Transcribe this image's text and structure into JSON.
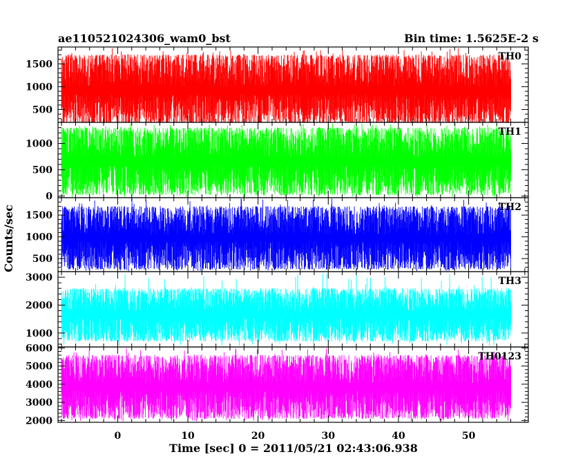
{
  "chart_data": {
    "type": "line",
    "title": "ae110521024306_wam0_bst",
    "bin_time_label": "Bin time: 1.5625E-2 s",
    "xlabel": "Time [sec] 0 = 2011/05/21 02:43:06.938",
    "ylabel": "Counts/sec",
    "xlim": [
      -8.5,
      58.5
    ],
    "xticks": [
      0,
      10,
      20,
      30,
      40,
      50
    ],
    "xtick_labels": [
      "0",
      "10",
      "20",
      "30",
      "40",
      "50"
    ],
    "x_start": -8,
    "x_end": 56,
    "bin_time": 0.015625,
    "grid": false,
    "panels": [
      {
        "name": "TH0",
        "color": "#ff0000",
        "ylim": [
          220,
          1870
        ],
        "yticks": [
          500,
          1000,
          1500
        ],
        "ytick_labels": [
          "500",
          "1000",
          "1500"
        ],
        "typical_min": 150,
        "typical_max": 1700,
        "mean": 850,
        "peak": 1850
      },
      {
        "name": "TH1",
        "color": "#00ff00",
        "ylim": [
          -30,
          1400
        ],
        "yticks": [
          0,
          500,
          1000
        ],
        "ytick_labels": [
          "0",
          "500",
          "1000"
        ],
        "typical_min": 20,
        "typical_max": 1300,
        "mean": 550,
        "peak": 1380
      },
      {
        "name": "TH2",
        "color": "#0000ff",
        "ylim": [
          200,
          1900
        ],
        "yticks": [
          500,
          1000,
          1500
        ],
        "ytick_labels": [
          "500",
          "1000",
          "1500"
        ],
        "typical_min": 250,
        "typical_max": 1700,
        "mean": 820,
        "peak": 1900
      },
      {
        "name": "TH3",
        "color": "#00ffff",
        "ylim": [
          500,
          3200
        ],
        "yticks": [
          1000,
          2000,
          3000
        ],
        "ytick_labels": [
          "1000",
          "2000",
          "3000"
        ],
        "typical_min": 700,
        "typical_max": 2600,
        "mean": 1400,
        "peak": 3150
      },
      {
        "name": "TH0123",
        "color": "#ff00ff",
        "ylim": [
          1900,
          6050
        ],
        "yticks": [
          2000,
          3000,
          4000,
          5000,
          6000
        ],
        "ytick_labels": [
          "2000",
          "3000",
          "4000",
          "5000",
          "6000"
        ],
        "typical_min": 2100,
        "typical_max": 5600,
        "mean": 3500,
        "peak": 6000
      }
    ]
  }
}
